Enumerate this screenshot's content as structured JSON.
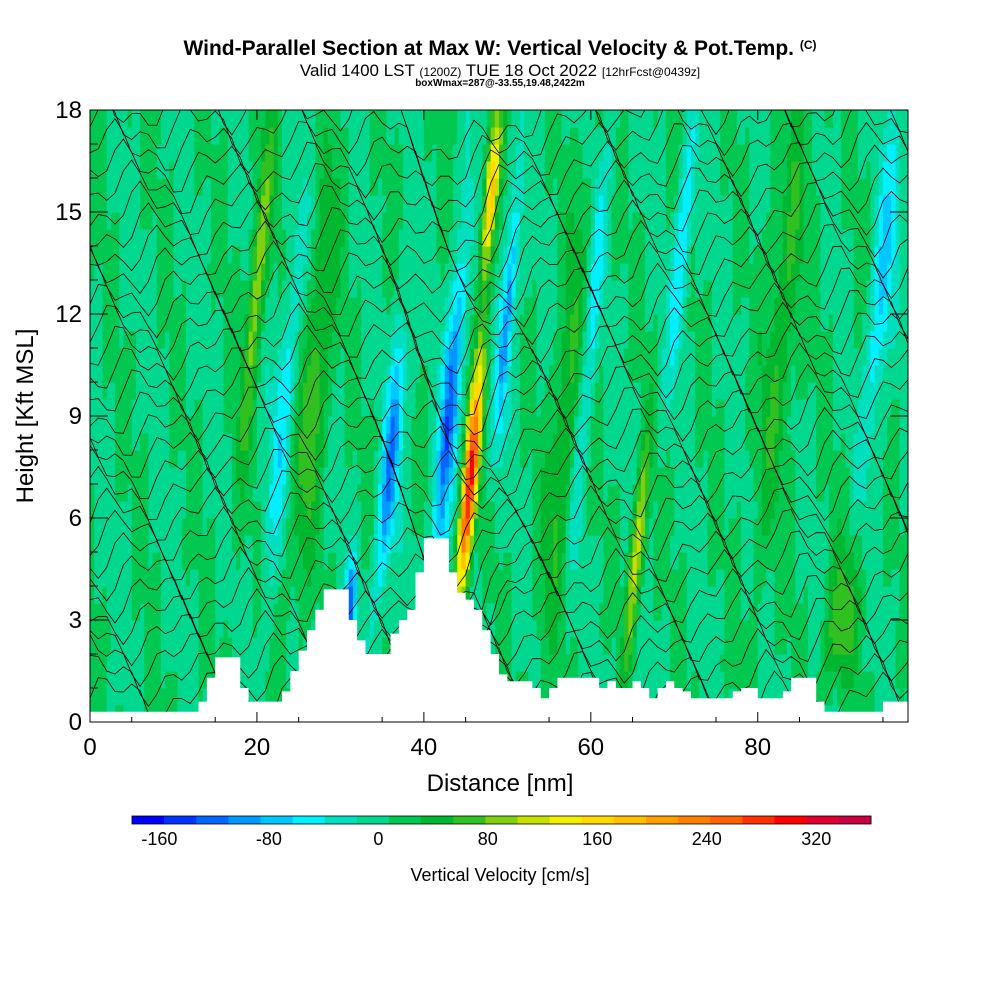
{
  "chart_data": {
    "type": "heatmap",
    "title_main": "Wind-Parallel Section at Max W: Vertical Velocity & Pot.Temp.",
    "title_mark": "(C)",
    "subtitle_main": "Valid 1400 LST",
    "subtitle_utc": "(1200Z)",
    "subtitle_date": "TUE 18 Oct 2022",
    "subtitle_fcst": "[12hrFcst@0439z]",
    "subtitle2": "boxWmax=287@-33.55,19.48,2422m",
    "xlabel": "Distance [nm]",
    "ylabel": "Height [Kft MSL]",
    "xlim": [
      0,
      98
    ],
    "ylim": [
      0,
      18
    ],
    "xticks": [
      0,
      20,
      40,
      60,
      80
    ],
    "yticks": [
      0,
      3,
      6,
      9,
      12,
      15,
      18
    ],
    "colorbar": {
      "label": "Vertical Velocity [cm/s]",
      "min": -180,
      "max": 360,
      "tick_values": [
        -160,
        -80,
        0,
        80,
        160,
        240,
        320
      ],
      "tick_labels": [
        "-160",
        "-80",
        "0",
        "80",
        "160",
        "240",
        "320"
      ],
      "colors": [
        "#0000ff",
        "#0033ff",
        "#0066ff",
        "#0099ff",
        "#00c8ff",
        "#00f0ff",
        "#00e0c0",
        "#00d890",
        "#00c850",
        "#00b830",
        "#30c020",
        "#80d010",
        "#c8e000",
        "#f0f000",
        "#ffd800",
        "#ffc000",
        "#ffa000",
        "#ff8000",
        "#ff6000",
        "#ff3000",
        "#ff0000",
        "#e00030",
        "#c80040"
      ]
    },
    "terrain": [
      [
        0,
        0.3
      ],
      [
        12,
        0.3
      ],
      [
        13,
        0.6
      ],
      [
        14,
        1.3
      ],
      [
        15,
        1.9
      ],
      [
        17,
        1.9
      ],
      [
        18,
        1.0
      ],
      [
        19,
        0.6
      ],
      [
        22,
        0.6
      ],
      [
        23,
        0.9
      ],
      [
        24,
        1.5
      ],
      [
        25,
        2.1
      ],
      [
        26,
        2.7
      ],
      [
        27,
        3.3
      ],
      [
        28,
        3.9
      ],
      [
        30,
        3.9
      ],
      [
        31,
        3.0
      ],
      [
        32,
        2.4
      ],
      [
        33,
        2.0
      ],
      [
        35,
        2.0
      ],
      [
        36,
        2.6
      ],
      [
        37,
        3.0
      ],
      [
        38,
        3.3
      ],
      [
        39,
        4.4
      ],
      [
        40,
        5.4
      ],
      [
        42,
        5.4
      ],
      [
        43,
        4.4
      ],
      [
        44,
        3.8
      ],
      [
        45,
        3.6
      ],
      [
        46,
        3.3
      ],
      [
        47,
        2.7
      ],
      [
        48,
        2.0
      ],
      [
        49,
        1.4
      ],
      [
        50,
        1.2
      ],
      [
        52,
        1.2
      ],
      [
        53,
        1.0
      ],
      [
        54,
        0.7
      ],
      [
        55,
        1.0
      ],
      [
        56,
        1.3
      ],
      [
        58,
        1.3
      ],
      [
        60,
        1.3
      ],
      [
        61,
        1.0
      ],
      [
        62,
        1.2
      ],
      [
        63,
        1.0
      ],
      [
        64,
        1.0
      ],
      [
        65,
        1.2
      ],
      [
        66,
        1.0
      ],
      [
        67,
        0.7
      ],
      [
        68,
        1.0
      ],
      [
        69,
        1.2
      ],
      [
        70,
        1.0
      ],
      [
        71,
        0.9
      ],
      [
        72,
        0.7
      ],
      [
        74,
        0.7
      ],
      [
        76,
        0.7
      ],
      [
        77,
        0.9
      ],
      [
        78,
        1.0
      ],
      [
        80,
        0.7
      ],
      [
        82,
        0.7
      ],
      [
        83,
        0.9
      ],
      [
        84,
        1.3
      ],
      [
        86,
        1.3
      ],
      [
        87,
        0.6
      ],
      [
        88,
        0.3
      ],
      [
        94,
        0.3
      ],
      [
        95,
        0.6
      ],
      [
        98,
        0.6
      ]
    ],
    "updrafts": [
      {
        "x": 45.5,
        "z_center": 7.0,
        "z_spread": 3.5,
        "value": 287,
        "width": 0.9
      },
      {
        "x": 48.0,
        "z_center": 15.5,
        "z_spread": 2.5,
        "value": 170,
        "width": 0.8
      },
      {
        "x": 27.0,
        "z_center": 10.0,
        "z_spread": 6.0,
        "value": 70,
        "width": 1.5
      },
      {
        "x": 20.0,
        "z_center": 13.0,
        "z_spread": 5.0,
        "value": 90,
        "width": 1.0
      },
      {
        "x": 65.5,
        "z_center": 5.0,
        "z_spread": 3.0,
        "value": 120,
        "width": 0.8
      },
      {
        "x": 57.0,
        "z_center": 9.0,
        "z_spread": 7.0,
        "value": 60,
        "width": 1.5
      },
      {
        "x": 83.0,
        "z_center": 12.0,
        "z_spread": 7.0,
        "value": 50,
        "width": 2.0
      },
      {
        "x": 90.0,
        "z_center": 3.0,
        "z_spread": 2.0,
        "value": 70,
        "width": 2.0
      }
    ],
    "downdrafts": [
      {
        "x": 43.0,
        "z_center": 9.0,
        "z_spread": 5.0,
        "value": -140,
        "width": 1.0
      },
      {
        "x": 36.0,
        "z_center": 7.5,
        "z_spread": 4.0,
        "value": -120,
        "width": 1.0
      },
      {
        "x": 31.0,
        "z_center": 3.2,
        "z_spread": 1.5,
        "value": -140,
        "width": 0.7
      },
      {
        "x": 50.0,
        "z_center": 12.0,
        "z_spread": 4.0,
        "value": -110,
        "width": 0.8
      },
      {
        "x": 23.0,
        "z_center": 9.0,
        "z_spread": 5.0,
        "value": -60,
        "width": 1.2
      },
      {
        "x": 60.0,
        "z_center": 12.0,
        "z_spread": 6.0,
        "value": -60,
        "width": 1.0
      },
      {
        "x": 71.0,
        "z_center": 14.0,
        "z_spread": 4.0,
        "value": -70,
        "width": 1.0
      },
      {
        "x": 95.0,
        "z_center": 13.0,
        "z_spread": 5.0,
        "value": -80,
        "width": 1.2
      }
    ]
  }
}
